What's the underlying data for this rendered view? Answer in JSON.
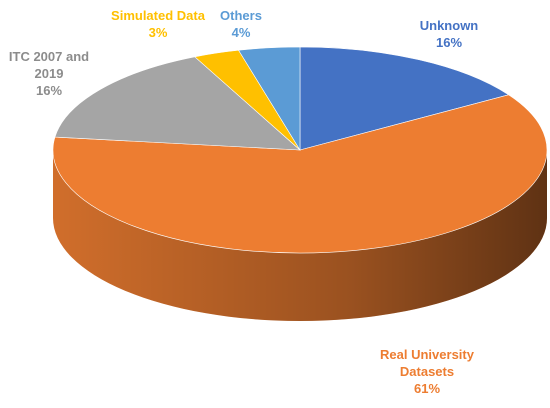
{
  "chart_data": {
    "type": "pie",
    "categories": [
      "Unknown",
      "Real University Datasets",
      "ITC 2007 and 2019",
      "Simulated Data",
      "Others"
    ],
    "values": [
      16,
      61,
      16,
      3,
      4
    ],
    "value_labels": [
      "16%",
      "61%",
      "16%",
      "3%",
      "4%"
    ],
    "colors": [
      "#4472c4",
      "#ed7d31",
      "#a5a5a5",
      "#ffc000",
      "#5b9bd5"
    ]
  }
}
